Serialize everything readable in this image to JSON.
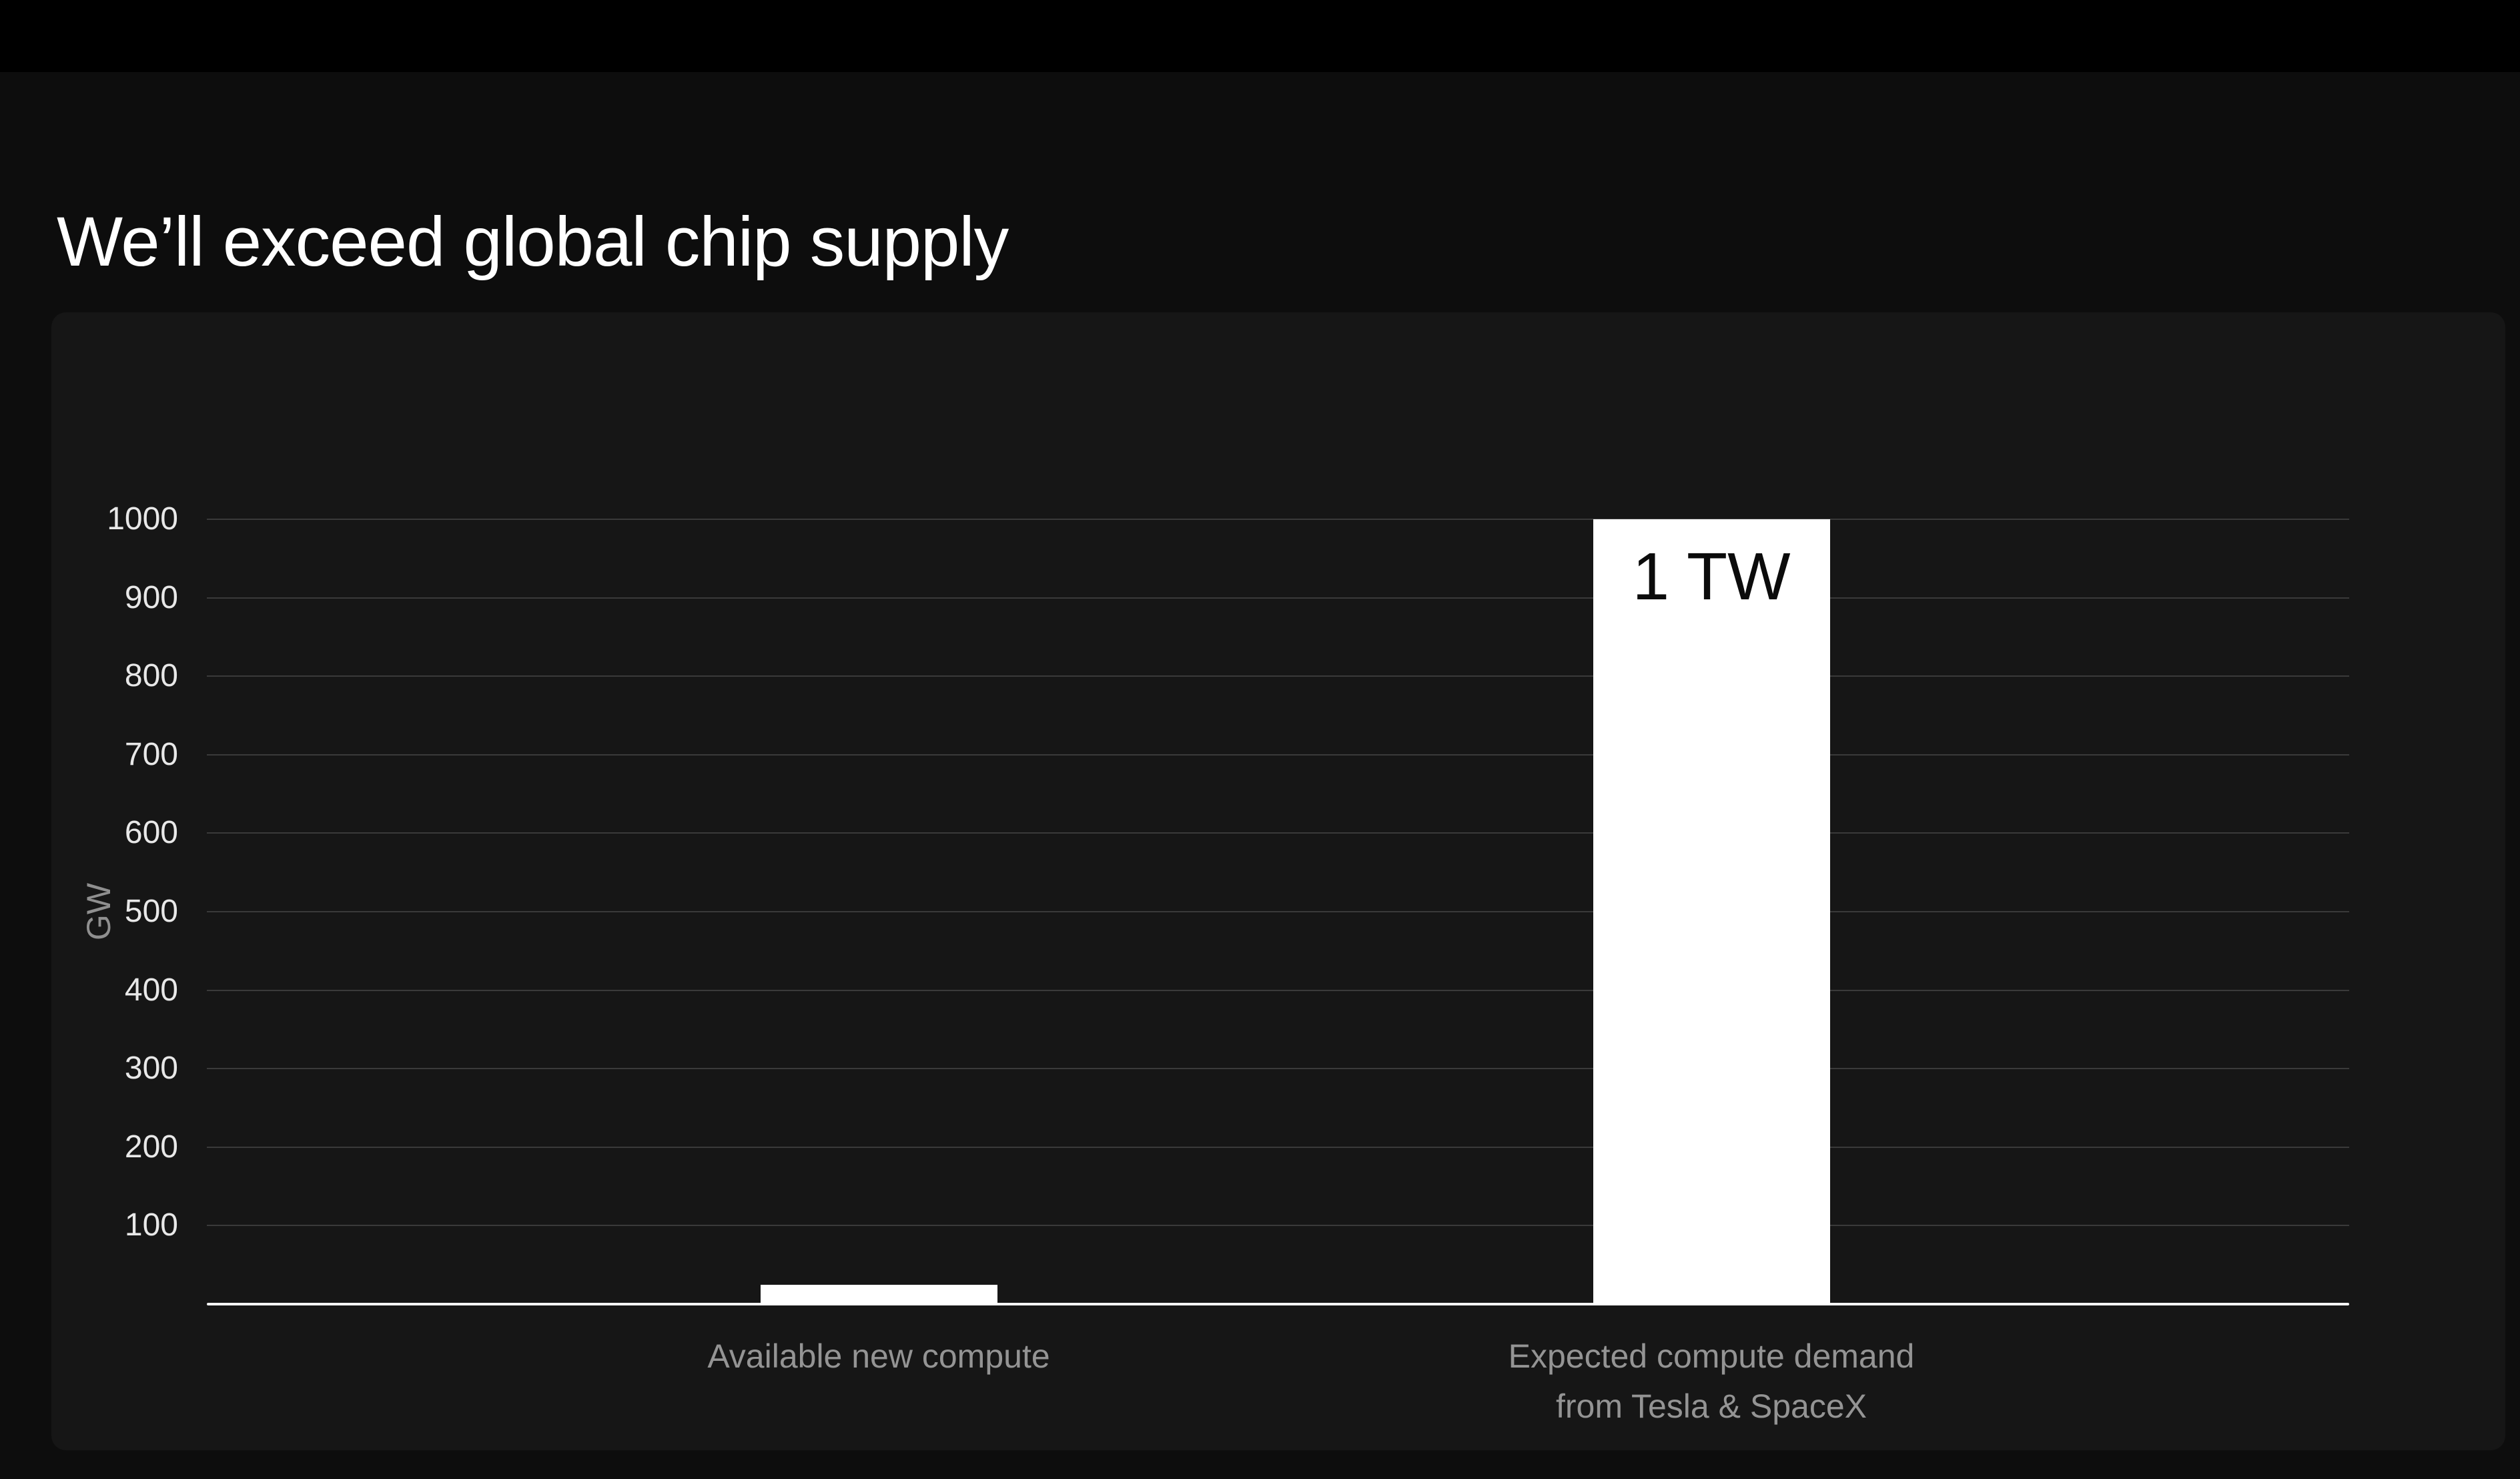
{
  "page": {
    "title": "We’ll exceed global chip supply"
  },
  "colors": {
    "top_bar": "#000000",
    "page_background": "#0d0d0d",
    "card_background": "#161616",
    "gridline": "#3a3a3a",
    "axis_line": "#f5f5f5",
    "bar_fill": "#ffffff",
    "bar_label_text": "#0b0b0b",
    "tick_text": "#e8e8e8",
    "muted_text": "#949494",
    "title_text": "#ffffff"
  },
  "chart_data": {
    "type": "bar",
    "title": "",
    "xlabel": "",
    "ylabel": "GW",
    "ylim": [
      0,
      1000
    ],
    "y_ticks": [
      100,
      200,
      300,
      400,
      500,
      600,
      700,
      800,
      900,
      1000
    ],
    "grid": true,
    "legend": "none",
    "categories": [
      "Available new compute",
      "Expected compute demand from Tesla & SpaceX"
    ],
    "category_label_lines": [
      [
        "Available new compute"
      ],
      [
        "Expected compute demand",
        "from Tesla & SpaceX"
      ]
    ],
    "values": [
      25,
      1000
    ],
    "bar_value_labels": [
      "",
      "1 TW"
    ]
  }
}
